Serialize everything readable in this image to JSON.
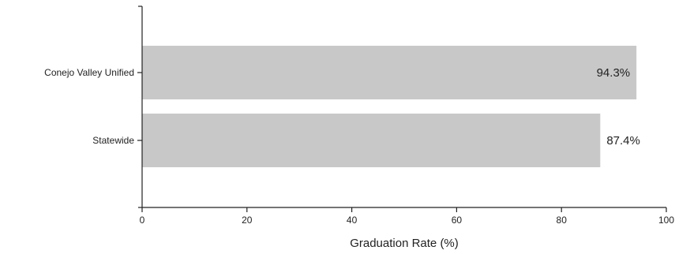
{
  "chart_data": {
    "type": "bar",
    "orientation": "horizontal",
    "title": "",
    "categories": [
      "Conejo Valley Unified",
      "Statewide"
    ],
    "values": [
      94.3,
      87.4
    ],
    "value_labels": [
      "94.3%",
      "87.4%"
    ],
    "xlabel": "Graduation Rate (%)",
    "ylabel": "",
    "xlim": [
      0,
      100
    ],
    "xticks": [
      0,
      20,
      40,
      60,
      80,
      100
    ],
    "xtick_labels": [
      "0",
      "20",
      "40",
      "60",
      "80",
      "100"
    ],
    "grid": false,
    "legend": "none",
    "colors": {
      "bar": "#c8c8c8",
      "axis": "#222222"
    }
  }
}
